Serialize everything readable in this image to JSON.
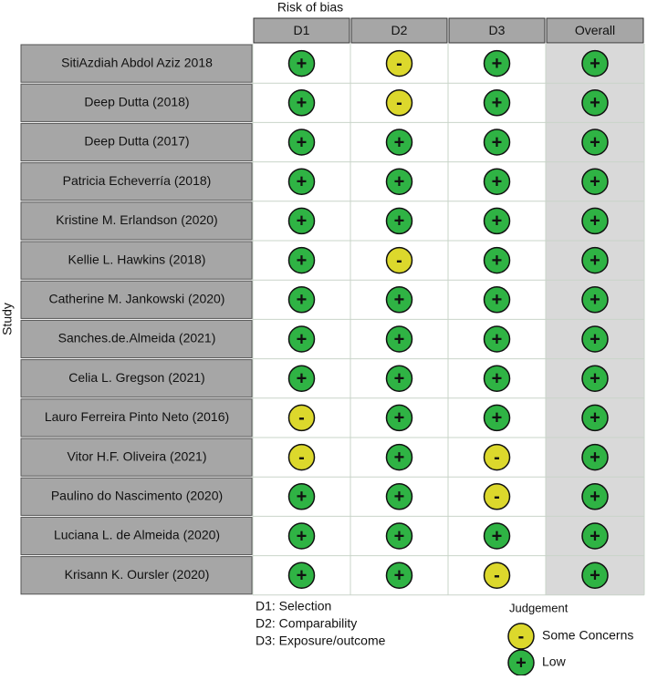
{
  "title": "Risk of bias",
  "y_label": "Study",
  "columns": [
    "D1",
    "D2",
    "D3",
    "Overall"
  ],
  "rows": [
    {
      "study": "SitiAzdiah Abdol Aziz 2018",
      "judgements": [
        "+",
        "-",
        "+",
        "+"
      ]
    },
    {
      "study": "Deep Dutta (2018)",
      "judgements": [
        "+",
        "-",
        "+",
        "+"
      ]
    },
    {
      "study": "Deep Dutta (2017)",
      "judgements": [
        "+",
        "+",
        "+",
        "+"
      ]
    },
    {
      "study": "Patricia Echeverría (2018)",
      "judgements": [
        "+",
        "+",
        "+",
        "+"
      ]
    },
    {
      "study": "Kristine M. Erlandson (2020)",
      "judgements": [
        "+",
        "+",
        "+",
        "+"
      ]
    },
    {
      "study": "Kellie L. Hawkins (2018)",
      "judgements": [
        "+",
        "-",
        "+",
        "+"
      ]
    },
    {
      "study": "Catherine M. Jankowski (2020)",
      "judgements": [
        "+",
        "+",
        "+",
        "+"
      ]
    },
    {
      "study": "Sanches.de.Almeida (2021)",
      "judgements": [
        "+",
        "+",
        "+",
        "+"
      ]
    },
    {
      "study": "Celia L. Gregson (2021)",
      "judgements": [
        "+",
        "+",
        "+",
        "+"
      ]
    },
    {
      "study": "Lauro Ferreira Pinto Neto (2016)",
      "judgements": [
        "-",
        "+",
        "+",
        "+"
      ]
    },
    {
      "study": "Vitor H.F. Oliveira (2021)",
      "judgements": [
        "-",
        "+",
        "-",
        "+"
      ]
    },
    {
      "study": "Paulino do Nascimento (2020)",
      "judgements": [
        "+",
        "+",
        "-",
        "+"
      ]
    },
    {
      "study": "Luciana L. de Almeida (2020)",
      "judgements": [
        "+",
        "+",
        "+",
        "+"
      ]
    },
    {
      "study": "Krisann K. Oursler (2020)",
      "judgements": [
        "+",
        "+",
        "-",
        "+"
      ]
    }
  ],
  "domain_notes": [
    "D1: Selection",
    "D2: Comparability",
    "D3: Exposure/outcome"
  ],
  "legend": {
    "title": "Judgement",
    "items": [
      {
        "symbol": "-",
        "label": "Some Concerns",
        "color": "#dcd82c"
      },
      {
        "symbol": "+",
        "label": "Low",
        "color": "#2fb344"
      }
    ]
  }
}
